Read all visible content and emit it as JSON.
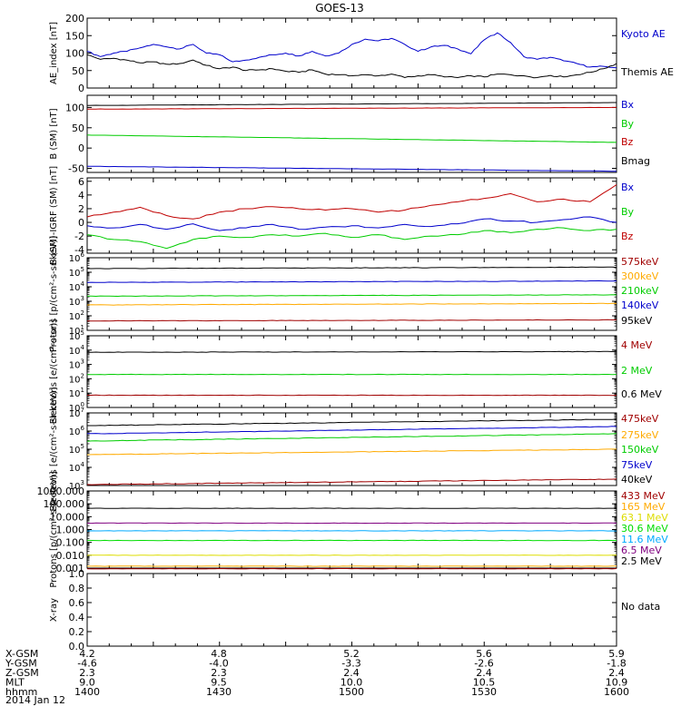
{
  "title": "GOES-13",
  "date_label": "2014 Jan 12",
  "colors": {
    "black": "#000000",
    "red": "#c00000",
    "green": "#00cc00",
    "blue": "#0000cc",
    "orange": "#ffaa00",
    "darkred": "#a00000",
    "purple": "#800080",
    "cyan": "#00aaff",
    "yellow": "#dddd00",
    "lime": "#00dd00",
    "magenta": "#cc0099"
  },
  "ephemeris": {
    "rows": [
      {
        "label": "X-GSM",
        "values": [
          "4.2",
          "4.8",
          "5.2",
          "5.6",
          "5.9"
        ]
      },
      {
        "label": "Y-GSM",
        "values": [
          "-4.6",
          "-4.0",
          "-3.3",
          "-2.6",
          "-1.8"
        ]
      },
      {
        "label": "Z-GSM",
        "values": [
          "2.3",
          "2.3",
          "2.4",
          "2.4",
          "2.4"
        ]
      },
      {
        "label": "MLT",
        "values": [
          "9.0",
          "9.5",
          "10.0",
          "10.5",
          "10.9"
        ]
      },
      {
        "label": "hhmm",
        "values": [
          "1400",
          "1430",
          "1500",
          "1530",
          "1600"
        ]
      }
    ]
  },
  "chart_data": [
    {
      "type": "line",
      "ylabel": "AE_index [nT]",
      "ylim": [
        0,
        200
      ],
      "yticks": [
        "0",
        "50",
        "100",
        "150",
        "200"
      ],
      "x_range": [
        "1400",
        "1600"
      ],
      "series": [
        {
          "name": "Kyoto AE",
          "color": "blue",
          "x": [
            0,
            6,
            12,
            18,
            24,
            30,
            36,
            42,
            48,
            54,
            60,
            66,
            72,
            78,
            84,
            90,
            96,
            102,
            108,
            114,
            120,
            126,
            132,
            138,
            144,
            150,
            156,
            162,
            168,
            174,
            180,
            186,
            192,
            198,
            204,
            210,
            216,
            222,
            228,
            234,
            240
          ],
          "values": [
            105,
            90,
            100,
            105,
            115,
            125,
            118,
            112,
            125,
            100,
            95,
            75,
            80,
            88,
            95,
            100,
            92,
            105,
            92,
            100,
            125,
            140,
            135,
            142,
            125,
            105,
            118,
            122,
            112,
            98,
            138,
            158,
            130,
            90,
            82,
            88,
            78,
            70,
            60,
            62,
            58
          ]
        },
        {
          "name": "Themis AE",
          "color": "black",
          "x": [
            0,
            6,
            12,
            18,
            24,
            30,
            36,
            42,
            48,
            54,
            60,
            66,
            72,
            78,
            84,
            90,
            96,
            102,
            108,
            114,
            120,
            126,
            132,
            138,
            144,
            150,
            156,
            162,
            168,
            174,
            180,
            186,
            192,
            198,
            204,
            210,
            216,
            222,
            228,
            234,
            240
          ],
          "values": [
            95,
            82,
            85,
            80,
            72,
            75,
            68,
            70,
            80,
            65,
            55,
            60,
            50,
            52,
            55,
            48,
            45,
            52,
            40,
            38,
            35,
            38,
            35,
            40,
            30,
            35,
            38,
            32,
            30,
            35,
            32,
            40,
            38,
            35,
            30,
            36,
            32,
            38,
            45,
            55,
            70
          ]
        }
      ]
    },
    {
      "type": "line",
      "ylabel": "B (SM) [nT]",
      "ylim": [
        -60,
        130
      ],
      "yticks": [
        "-50",
        "0",
        "50",
        "100"
      ],
      "series": [
        {
          "name": "Bx",
          "color": "blue",
          "x": [
            0,
            240
          ],
          "values": [
            -45,
            -57
          ]
        },
        {
          "name": "By",
          "color": "green",
          "x": [
            0,
            240
          ],
          "values": [
            32,
            14
          ]
        },
        {
          "name": "Bz",
          "color": "red",
          "x": [
            0,
            240
          ],
          "values": [
            96,
            100
          ]
        },
        {
          "name": "Bmag",
          "color": "black",
          "x": [
            0,
            240
          ],
          "values": [
            105,
            112
          ]
        }
      ]
    },
    {
      "type": "line",
      "ylabel": "B (SM)-IGRF (SM) [nT]",
      "ylim": [
        -4.5,
        6.5
      ],
      "yticks": [
        "-4",
        "-2",
        "0",
        "2",
        "4",
        "6"
      ],
      "series": [
        {
          "name": "Bx",
          "color": "blue",
          "x": [
            0,
            12,
            24,
            36,
            48,
            60,
            72,
            84,
            96,
            108,
            120,
            132,
            144,
            156,
            168,
            180,
            192,
            204,
            216,
            228,
            240
          ],
          "values": [
            -0.5,
            -0.8,
            -0.3,
            -1.0,
            -0.2,
            -1.2,
            -0.8,
            -0.3,
            -1.0,
            -0.7,
            -0.5,
            -0.8,
            -0.3,
            -0.6,
            -0.2,
            0.5,
            0.2,
            0.0,
            0.4,
            0.8,
            0.0
          ]
        },
        {
          "name": "By",
          "color": "green",
          "x": [
            0,
            12,
            24,
            36,
            48,
            60,
            72,
            84,
            96,
            108,
            120,
            132,
            144,
            156,
            168,
            180,
            192,
            204,
            216,
            228,
            240
          ],
          "values": [
            -1.8,
            -2.5,
            -2.8,
            -3.8,
            -2.5,
            -2.0,
            -2.2,
            -1.8,
            -2.0,
            -1.6,
            -2.2,
            -1.8,
            -2.5,
            -2.0,
            -1.8,
            -1.2,
            -1.5,
            -1.0,
            -0.8,
            -1.2,
            -1.0
          ]
        },
        {
          "name": "Bz",
          "color": "red",
          "x": [
            0,
            12,
            24,
            36,
            48,
            60,
            72,
            84,
            96,
            108,
            120,
            132,
            144,
            156,
            168,
            180,
            192,
            204,
            216,
            228,
            240
          ],
          "values": [
            0.8,
            1.5,
            2.2,
            1.0,
            0.5,
            1.5,
            2.0,
            2.3,
            2.0,
            1.8,
            2.0,
            1.5,
            1.8,
            2.5,
            3.0,
            3.5,
            4.2,
            3.0,
            3.4,
            3.0,
            5.5
          ]
        }
      ]
    },
    {
      "type": "line",
      "ylabel": "Protons [p/(cm²-s-sr-keV)]",
      "yscale": "log",
      "ylim_exp": [
        1,
        6
      ],
      "series": [
        {
          "name": "575keV",
          "color": "darkred",
          "x": [
            0,
            240
          ],
          "values_log10": [
            1.65,
            1.72
          ]
        },
        {
          "name": "300keV",
          "color": "orange",
          "x": [
            0,
            240
          ],
          "values_log10": [
            2.75,
            2.85
          ]
        },
        {
          "name": "210keV",
          "color": "green",
          "x": [
            0,
            240
          ],
          "values_log10": [
            3.35,
            3.45
          ]
        },
        {
          "name": "140keV",
          "color": "blue",
          "x": [
            0,
            240
          ],
          "values_log10": [
            4.3,
            4.4
          ]
        },
        {
          "name": "95keV",
          "color": "black",
          "x": [
            0,
            240
          ],
          "values_log10": [
            5.25,
            5.35
          ]
        }
      ]
    },
    {
      "type": "line",
      "ylabel": "Electrons [e/(cm²-s-sr)]",
      "yscale": "log",
      "ylim_exp": [
        0,
        5
      ],
      "series": [
        {
          "name": "4 MeV",
          "color": "darkred",
          "x": [
            0,
            240
          ],
          "values_log10": [
            0.85,
            0.85
          ]
        },
        {
          "name": "2 MeV",
          "color": "green",
          "x": [
            0,
            240
          ],
          "values_log10": [
            2.3,
            2.3
          ]
        },
        {
          "name": "0.6 MeV",
          "color": "black",
          "x": [
            0,
            240
          ],
          "values_log10": [
            3.85,
            3.9
          ]
        }
      ]
    },
    {
      "type": "line",
      "ylabel": "Electrons [e/(cm²-s-sr-keV)]",
      "yscale": "log",
      "ylim_exp": [
        3,
        7
      ],
      "series": [
        {
          "name": "475keV",
          "color": "darkred",
          "x": [
            0,
            240
          ],
          "values_log10": [
            3.05,
            3.35
          ]
        },
        {
          "name": "275keV",
          "color": "orange",
          "x": [
            0,
            240
          ],
          "values_log10": [
            4.7,
            5.0
          ]
        },
        {
          "name": "150keV",
          "color": "green",
          "x": [
            0,
            240
          ],
          "values_log10": [
            5.45,
            5.85
          ]
        },
        {
          "name": "75keV",
          "color": "blue",
          "x": [
            0,
            240
          ],
          "values_log10": [
            5.85,
            6.25
          ]
        },
        {
          "name": "40keV",
          "color": "black",
          "x": [
            0,
            240
          ],
          "values_log10": [
            6.3,
            6.65
          ]
        }
      ]
    },
    {
      "type": "line",
      "ylabel": "Protons [p/(cm²-s-sr-keV)]",
      "yscale": "log",
      "ylim_exp": [
        -3,
        3
      ],
      "yticks": [
        "0.001",
        "0.010",
        "0.100",
        "1.000",
        "10.000",
        "100.000",
        "1000.000"
      ],
      "series": [
        {
          "name": "433 MeV",
          "color": "darkred",
          "x": [
            0,
            240
          ],
          "values_log10": [
            -3.05,
            -3.05
          ]
        },
        {
          "name": "165 MeV",
          "color": "orange",
          "x": [
            0,
            240
          ],
          "values_log10": [
            -2.85,
            -2.85
          ]
        },
        {
          "name": "63.1 MeV",
          "color": "yellow",
          "x": [
            0,
            240
          ],
          "values_log10": [
            -2.0,
            -2.0
          ]
        },
        {
          "name": "30.6 MeV",
          "color": "lime",
          "x": [
            0,
            240
          ],
          "values_log10": [
            -0.85,
            -0.85
          ]
        },
        {
          "name": "11.6 MeV",
          "color": "cyan",
          "x": [
            0,
            240
          ],
          "values_log10": [
            -0.1,
            -0.1
          ]
        },
        {
          "name": "6.5 MeV",
          "color": "purple",
          "x": [
            0,
            240
          ],
          "values_log10": [
            0.5,
            0.5
          ]
        },
        {
          "name": "2.5 MeV",
          "color": "black",
          "x": [
            0,
            240
          ],
          "values_log10": [
            1.65,
            1.65
          ]
        }
      ]
    },
    {
      "type": "line",
      "ylabel": "X-ray",
      "ylim": [
        0,
        1
      ],
      "yticks": [
        "0.0",
        "0.2",
        "0.4",
        "0.6",
        "0.8",
        "1.0"
      ],
      "series": [],
      "note": "No data"
    }
  ]
}
